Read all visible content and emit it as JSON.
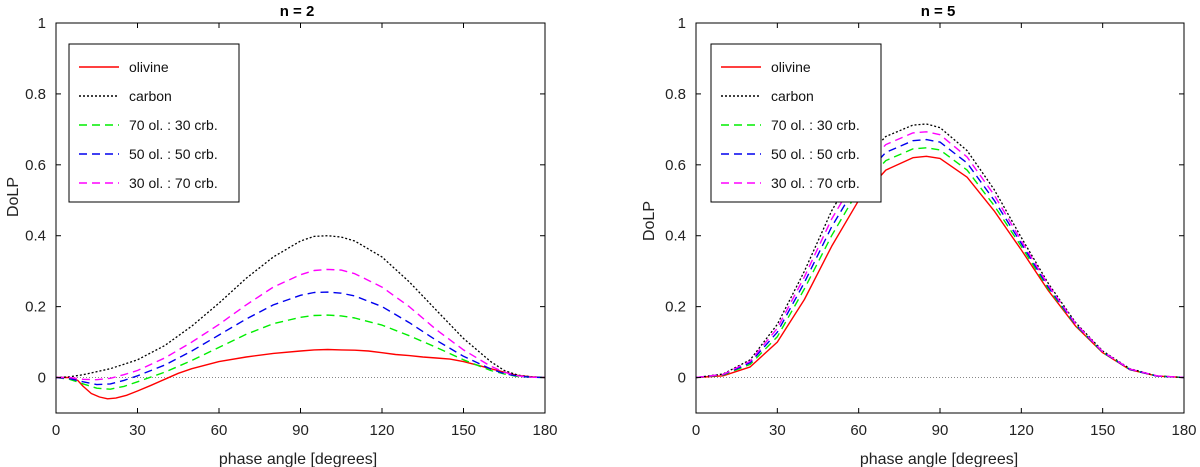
{
  "chart_data": [
    {
      "type": "line",
      "title": "n = 2",
      "xlabel": "phase angle [degrees]",
      "ylabel": "DoLP",
      "xlim": [
        0,
        180
      ],
      "ylim": [
        -0.1,
        1
      ],
      "xticks": [
        0,
        30,
        60,
        90,
        120,
        150,
        180
      ],
      "xtick_labels": [
        "0",
        "30",
        "60",
        "90",
        "120",
        "150",
        "180"
      ],
      "yticks": [
        0,
        0.2,
        0.4,
        0.6,
        0.8,
        1
      ],
      "ytick_labels": [
        "0",
        "0.2",
        "0.4",
        "0.6",
        "0.8",
        "1"
      ],
      "legend_position": "top-left",
      "series": [
        {
          "name": "olivine",
          "color": "#ff0000",
          "dash": "solid",
          "x": [
            0,
            5,
            8,
            10,
            13,
            16,
            19,
            22,
            26,
            30,
            35,
            40,
            45,
            50,
            60,
            70,
            80,
            90,
            95,
            100,
            105,
            110,
            115,
            120,
            125,
            130,
            135,
            140,
            145,
            150,
            155,
            160,
            165,
            170,
            175,
            180
          ],
          "y": [
            0,
            0,
            -0.008,
            -0.025,
            -0.045,
            -0.055,
            -0.06,
            -0.058,
            -0.05,
            -0.038,
            -0.022,
            -0.005,
            0.012,
            0.025,
            0.045,
            0.058,
            0.068,
            0.075,
            0.078,
            0.079,
            0.078,
            0.077,
            0.075,
            0.07,
            0.065,
            0.062,
            0.058,
            0.055,
            0.052,
            0.045,
            0.035,
            0.025,
            0.015,
            0.006,
            0.002,
            0
          ]
        },
        {
          "name": "carbon",
          "color": "#000000",
          "dash": "dotted",
          "x": [
            0,
            5,
            10,
            20,
            30,
            40,
            50,
            60,
            70,
            80,
            90,
            95,
            100,
            105,
            110,
            120,
            130,
            140,
            150,
            160,
            165,
            170,
            175,
            180
          ],
          "y": [
            0,
            0.002,
            0.008,
            0.025,
            0.05,
            0.09,
            0.145,
            0.21,
            0.28,
            0.34,
            0.385,
            0.398,
            0.4,
            0.396,
            0.385,
            0.34,
            0.27,
            0.19,
            0.11,
            0.045,
            0.02,
            0.007,
            0.002,
            0
          ]
        },
        {
          "name": "70 ol. : 30 crb.",
          "color": "#00ee00",
          "dash": "dashed",
          "x": [
            0,
            5,
            10,
            15,
            20,
            25,
            30,
            40,
            50,
            60,
            70,
            80,
            90,
            95,
            100,
            105,
            110,
            120,
            130,
            140,
            150,
            160,
            165,
            170,
            175,
            180
          ],
          "y": [
            0,
            -0.005,
            -0.018,
            -0.03,
            -0.033,
            -0.025,
            -0.012,
            0.015,
            0.048,
            0.085,
            0.122,
            0.152,
            0.17,
            0.175,
            0.176,
            0.174,
            0.168,
            0.148,
            0.118,
            0.085,
            0.05,
            0.02,
            0.01,
            0.003,
            0.001,
            0
          ]
        },
        {
          "name": "50 ol. : 50 crb.",
          "color": "#0000ee",
          "dash": "dashed",
          "x": [
            0,
            5,
            10,
            15,
            20,
            25,
            30,
            40,
            50,
            60,
            70,
            80,
            90,
            95,
            100,
            105,
            110,
            120,
            130,
            140,
            150,
            160,
            165,
            170,
            175,
            180
          ],
          "y": [
            0,
            -0.003,
            -0.012,
            -0.02,
            -0.018,
            -0.008,
            0.005,
            0.035,
            0.075,
            0.12,
            0.165,
            0.205,
            0.232,
            0.24,
            0.241,
            0.238,
            0.23,
            0.2,
            0.155,
            0.105,
            0.06,
            0.024,
            0.011,
            0.004,
            0.001,
            0
          ]
        },
        {
          "name": "30 ol. : 70 crb.",
          "color": "#ff00ff",
          "dash": "dashed",
          "x": [
            0,
            5,
            10,
            15,
            20,
            25,
            30,
            40,
            50,
            60,
            70,
            80,
            90,
            95,
            100,
            105,
            110,
            120,
            130,
            140,
            150,
            160,
            165,
            170,
            175,
            180
          ],
          "y": [
            0,
            0,
            -0.005,
            -0.006,
            -0.002,
            0.008,
            0.02,
            0.055,
            0.1,
            0.15,
            0.205,
            0.255,
            0.29,
            0.302,
            0.305,
            0.303,
            0.293,
            0.255,
            0.2,
            0.135,
            0.078,
            0.032,
            0.015,
            0.005,
            0.001,
            0
          ]
        }
      ]
    },
    {
      "type": "line",
      "title": "n = 5",
      "xlabel": "phase angle [degrees]",
      "ylabel": "DoLP",
      "xlim": [
        0,
        180
      ],
      "ylim": [
        -0.1,
        1
      ],
      "xticks": [
        0,
        30,
        60,
        90,
        120,
        150,
        180
      ],
      "xtick_labels": [
        "0",
        "30",
        "60",
        "90",
        "120",
        "150",
        "180"
      ],
      "yticks": [
        0,
        0.2,
        0.4,
        0.6,
        0.8,
        1
      ],
      "ytick_labels": [
        "0",
        "0.2",
        "0.4",
        "0.6",
        "0.8",
        "1"
      ],
      "legend_position": "top-left",
      "series": [
        {
          "name": "olivine",
          "color": "#ff0000",
          "dash": "solid",
          "x": [
            0,
            10,
            20,
            30,
            40,
            50,
            60,
            70,
            80,
            85,
            90,
            100,
            110,
            120,
            130,
            140,
            150,
            160,
            170,
            180
          ],
          "y": [
            0,
            0.005,
            0.03,
            0.1,
            0.22,
            0.37,
            0.5,
            0.585,
            0.62,
            0.624,
            0.618,
            0.565,
            0.47,
            0.36,
            0.245,
            0.145,
            0.07,
            0.022,
            0.004,
            0
          ]
        },
        {
          "name": "carbon",
          "color": "#000000",
          "dash": "dotted",
          "x": [
            0,
            10,
            20,
            30,
            40,
            50,
            60,
            70,
            80,
            85,
            90,
            100,
            110,
            120,
            130,
            140,
            150,
            160,
            170,
            180
          ],
          "y": [
            0,
            0.01,
            0.05,
            0.15,
            0.3,
            0.47,
            0.6,
            0.68,
            0.712,
            0.715,
            0.705,
            0.64,
            0.53,
            0.395,
            0.265,
            0.155,
            0.075,
            0.025,
            0.005,
            0
          ]
        },
        {
          "name": "70 ol. : 30 crb.",
          "color": "#00ee00",
          "dash": "dashed",
          "x": [
            0,
            10,
            20,
            30,
            40,
            50,
            60,
            70,
            80,
            85,
            90,
            100,
            110,
            120,
            130,
            140,
            150,
            160,
            170,
            180
          ],
          "y": [
            0,
            0.007,
            0.037,
            0.115,
            0.25,
            0.4,
            0.53,
            0.612,
            0.645,
            0.648,
            0.642,
            0.585,
            0.485,
            0.37,
            0.25,
            0.148,
            0.071,
            0.023,
            0.004,
            0
          ]
        },
        {
          "name": "50 ol. : 50 crb.",
          "color": "#0000ee",
          "dash": "dashed",
          "x": [
            0,
            10,
            20,
            30,
            40,
            50,
            60,
            70,
            80,
            85,
            90,
            100,
            110,
            120,
            130,
            140,
            150,
            160,
            170,
            180
          ],
          "y": [
            0,
            0.008,
            0.042,
            0.128,
            0.268,
            0.425,
            0.553,
            0.635,
            0.668,
            0.671,
            0.664,
            0.605,
            0.5,
            0.378,
            0.255,
            0.15,
            0.072,
            0.023,
            0.004,
            0
          ]
        },
        {
          "name": "30 ol. : 70 crb.",
          "color": "#ff00ff",
          "dash": "dashed",
          "x": [
            0,
            10,
            20,
            30,
            40,
            50,
            60,
            70,
            80,
            85,
            90,
            100,
            110,
            120,
            130,
            140,
            150,
            160,
            170,
            180
          ],
          "y": [
            0,
            0.009,
            0.046,
            0.139,
            0.284,
            0.447,
            0.576,
            0.657,
            0.69,
            0.693,
            0.685,
            0.622,
            0.515,
            0.386,
            0.26,
            0.152,
            0.073,
            0.024,
            0.005,
            0
          ]
        }
      ]
    }
  ]
}
